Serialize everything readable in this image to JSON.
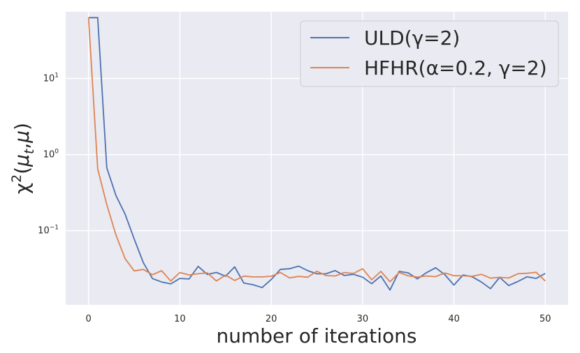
{
  "chart_data": {
    "type": "line",
    "xlabel": "number of iterations",
    "ylabel": "χ²(μ_t, μ)",
    "yscale": "log",
    "xlim": [
      -2.5,
      52.5
    ],
    "ylim": [
      0.0106,
      75
    ],
    "xticks": [
      0,
      10,
      20,
      30,
      40,
      50
    ],
    "yticks": [
      {
        "value": 0.1,
        "base": "10",
        "exp": "−1"
      },
      {
        "value": 1,
        "base": "10",
        "exp": "0"
      },
      {
        "value": 10,
        "base": "10",
        "exp": "1"
      }
    ],
    "grid": true,
    "legend_position": "top-right",
    "x": [
      0,
      1,
      2,
      3,
      4,
      5,
      6,
      7,
      8,
      9,
      10,
      11,
      12,
      13,
      14,
      15,
      16,
      17,
      18,
      19,
      20,
      21,
      22,
      23,
      24,
      25,
      26,
      27,
      28,
      29,
      30,
      31,
      32,
      33,
      34,
      35,
      36,
      37,
      38,
      39,
      40,
      41,
      42,
      43,
      44,
      45,
      46,
      47,
      48,
      49,
      50
    ],
    "series": [
      {
        "name": "ULD(γ=2)",
        "color": "#4c72b0",
        "values": [
          63,
          63,
          0.67,
          0.29,
          0.165,
          0.078,
          0.038,
          0.0235,
          0.0212,
          0.02,
          0.0236,
          0.0232,
          0.034,
          0.0266,
          0.0283,
          0.0252,
          0.0335,
          0.0205,
          0.0195,
          0.0179,
          0.0228,
          0.031,
          0.0316,
          0.0342,
          0.0298,
          0.0271,
          0.0272,
          0.0299,
          0.0258,
          0.0267,
          0.0245,
          0.0201,
          0.0254,
          0.0166,
          0.0292,
          0.0279,
          0.0233,
          0.0281,
          0.0326,
          0.0265,
          0.0193,
          0.0262,
          0.0248,
          0.0212,
          0.0173,
          0.0244,
          0.019,
          0.0215,
          0.0248,
          0.0236,
          0.0274
        ]
      },
      {
        "name": "HFHR(α=0.2, γ=2)",
        "color": "#dd8452",
        "values": [
          63,
          0.65,
          0.22,
          0.088,
          0.043,
          0.0296,
          0.031,
          0.0264,
          0.0298,
          0.0218,
          0.0282,
          0.0262,
          0.0272,
          0.0279,
          0.0218,
          0.0261,
          0.0222,
          0.0253,
          0.0247,
          0.0247,
          0.0252,
          0.0282,
          0.024,
          0.0251,
          0.0245,
          0.0293,
          0.0257,
          0.0254,
          0.0282,
          0.0274,
          0.0316,
          0.0226,
          0.0292,
          0.0213,
          0.0282,
          0.0255,
          0.0246,
          0.0254,
          0.0249,
          0.0278,
          0.0256,
          0.0255,
          0.0252,
          0.0267,
          0.0238,
          0.0244,
          0.0239,
          0.0272,
          0.0276,
          0.0284,
          0.0218
        ]
      }
    ]
  }
}
